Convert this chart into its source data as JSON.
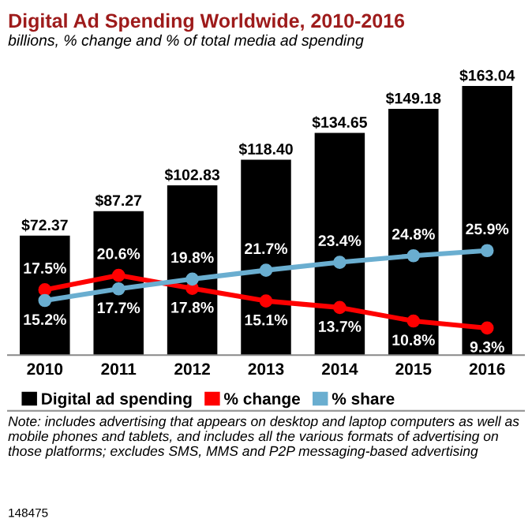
{
  "chart_data": {
    "type": "bar",
    "title": "Digital Ad Spending Worldwide, 2010-2016",
    "subtitle": "billions, % change and % of total media ad spending",
    "categories": [
      "2010",
      "2011",
      "2012",
      "2013",
      "2014",
      "2015",
      "2016"
    ],
    "series": [
      {
        "name": "Digital ad spending",
        "color": "#000000",
        "values": [
          72.37,
          87.27,
          102.83,
          118.4,
          134.65,
          149.18,
          163.04
        ],
        "value_labels": [
          "$72.37",
          "$87.27",
          "$102.83",
          "$118.40",
          "$134.65",
          "$149.18",
          "$163.04"
        ]
      },
      {
        "name": "% change",
        "type": "line",
        "axis": "y2",
        "color": "#ff0000",
        "values": [
          17.5,
          20.6,
          17.8,
          15.1,
          13.7,
          10.8,
          9.3
        ],
        "value_labels": [
          "17.5%",
          "20.6%",
          "17.8%",
          "15.1%",
          "13.7%",
          "10.8%",
          "9.3%"
        ]
      },
      {
        "name": "% share",
        "type": "line",
        "axis": "y2",
        "color": "#6aaed0",
        "values": [
          15.2,
          17.7,
          19.8,
          21.7,
          23.4,
          24.8,
          25.9
        ],
        "value_labels": [
          "15.2%",
          "17.7%",
          "19.8%",
          "21.7%",
          "23.4%",
          "24.8%",
          "25.9%"
        ]
      }
    ],
    "tick_labels": "x",
    "marker": "circle",
    "legend": "bottom",
    "grid": false,
    "annotations": [
      "Note: includes advertising that appears on desktop and laptop computers as well as mobile phones and tablets, and includes all the various formats of advertising on those platforms; excludes SMS, MMS and P2P messaging-based advertising",
      "148475"
    ]
  }
}
